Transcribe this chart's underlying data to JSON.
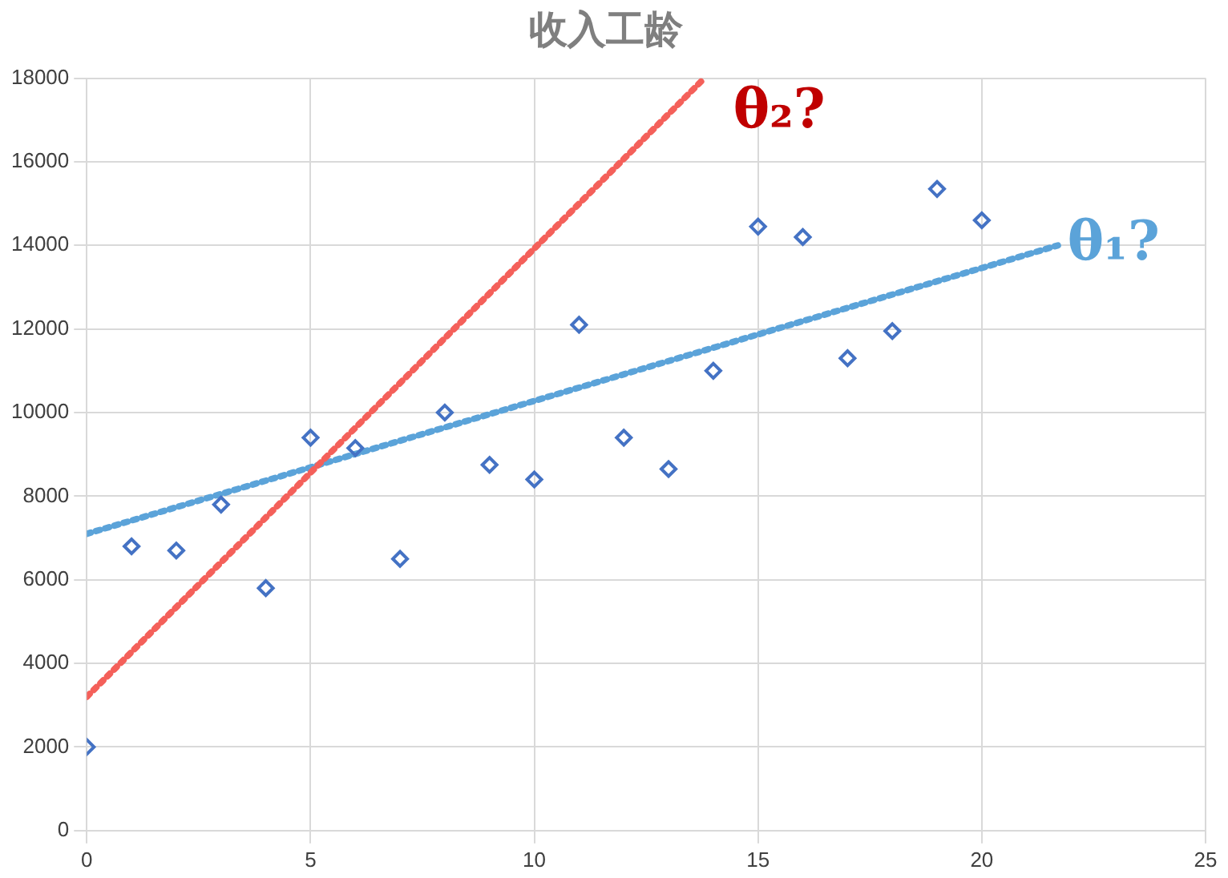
{
  "chart_data": {
    "type": "scatter",
    "title": "收入工龄",
    "x": [
      0,
      1,
      2,
      3,
      4,
      5,
      6,
      7,
      8,
      9,
      10,
      11,
      12,
      13,
      14,
      15,
      16,
      17,
      18,
      19,
      20
    ],
    "series": [
      {
        "type": "scatter",
        "color": "#4472c4",
        "marker": "diamond",
        "values": [
          2000,
          6800,
          6700,
          7800,
          5800,
          9400,
          9150,
          6500,
          10000,
          8750,
          8400,
          12100,
          9400,
          8650,
          11000,
          14450,
          14200,
          11300,
          11950,
          15350,
          14600
        ]
      },
      {
        "type": "line",
        "color": "#f4605a",
        "line_style": "dotted",
        "marker": "none",
        "x": [
          0,
          13.8
        ],
        "values": [
          3200,
          18000
        ]
      },
      {
        "type": "line",
        "color": "#5ba3d9",
        "line_style": "dotted",
        "marker": "none",
        "x": [
          0,
          21.7
        ],
        "values": [
          7100,
          14000
        ]
      }
    ],
    "annotations": [
      "θ₂?",
      "θ₁?"
    ],
    "xlim": [
      0,
      25
    ],
    "xticks": [
      0,
      5,
      10,
      15,
      20,
      25
    ],
    "ylim": [
      0,
      18000
    ],
    "yticks": [
      0,
      2000,
      4000,
      6000,
      8000,
      10000,
      12000,
      14000,
      16000,
      18000
    ],
    "grid": true,
    "legend": false
  }
}
